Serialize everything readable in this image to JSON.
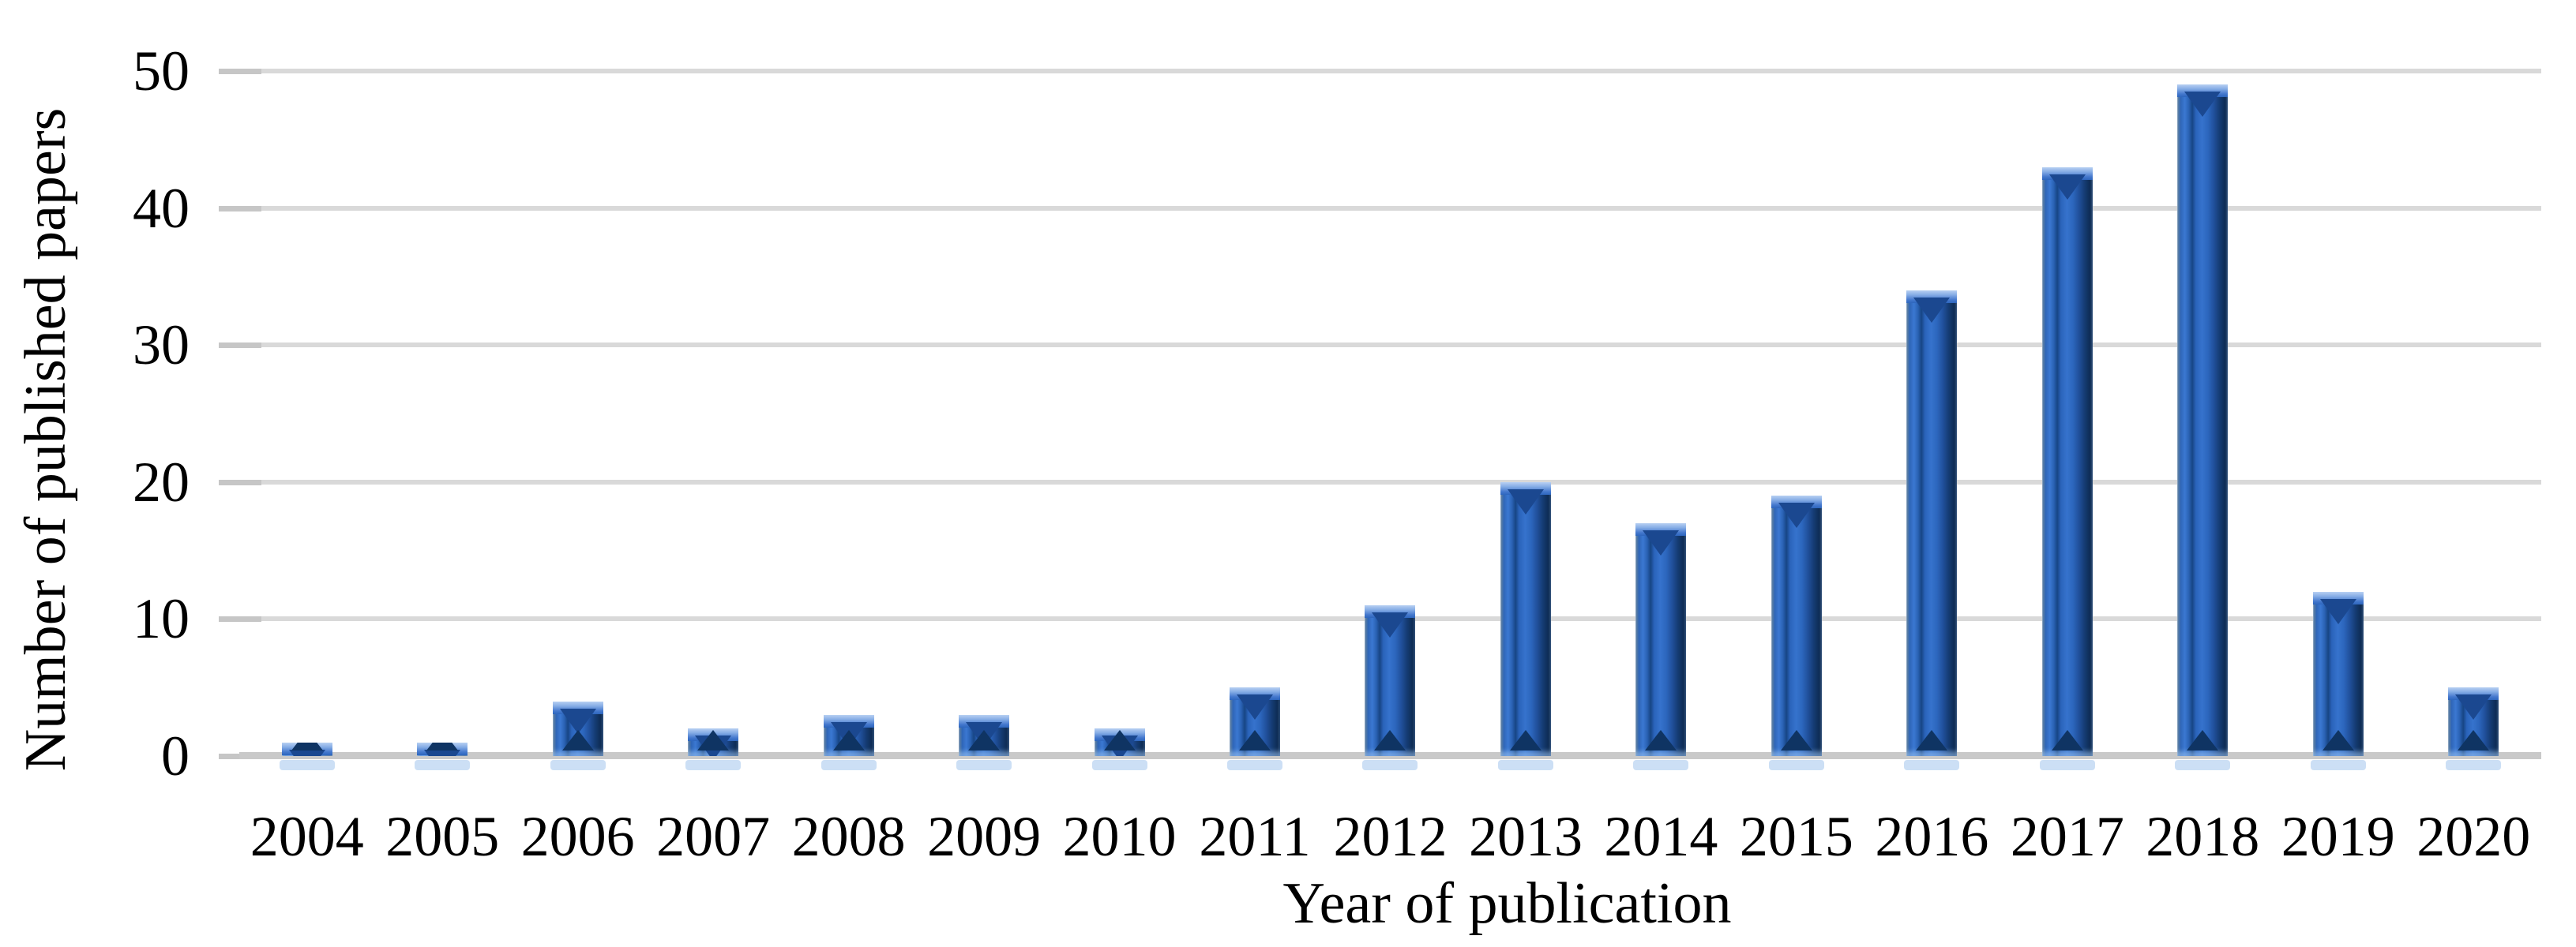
{
  "figure": {
    "background": "#ffffff",
    "text_color": "#000000"
  },
  "chart_data": {
    "type": "bar",
    "title": "",
    "xlabel": "Year of publication",
    "ylabel": "Number of published papers",
    "categories": [
      "2004",
      "2005",
      "2006",
      "2007",
      "2008",
      "2009",
      "2010",
      "2011",
      "2012",
      "2013",
      "2014",
      "2015",
      "2016",
      "2017",
      "2018",
      "2019",
      "2020"
    ],
    "values": [
      1,
      1,
      4,
      2,
      3,
      3,
      2,
      5,
      11,
      20,
      17,
      19,
      34,
      43,
      49,
      12,
      5
    ],
    "ylim": [
      0,
      50
    ],
    "yticks": [
      0,
      10,
      20,
      30,
      40,
      50
    ],
    "grid": "horizontal-only",
    "legend": "none",
    "gridline_color": "#d9d9d9",
    "axis_line_color": "#c9c9c9",
    "bar_color_main": "#2a63ba",
    "bar_color_dark": "#0e2c54",
    "bar_color_light": "#86ade6",
    "reflection_color": "#c7dbf4"
  }
}
